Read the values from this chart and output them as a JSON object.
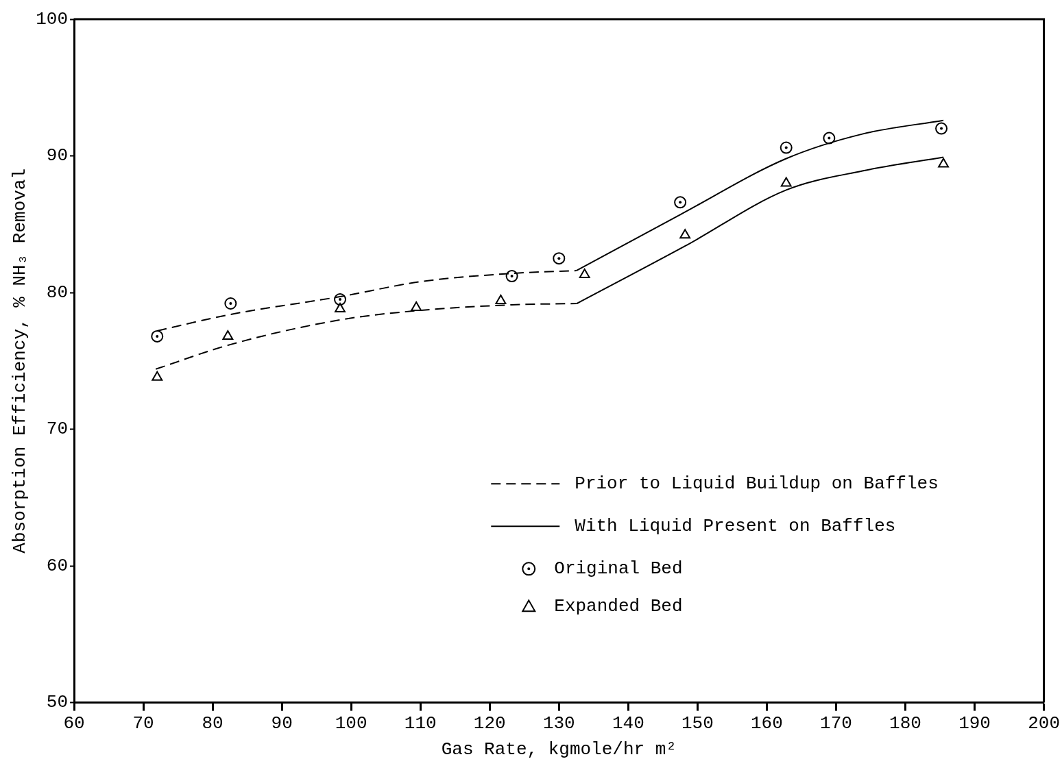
{
  "chart_data": {
    "type": "line",
    "xlabel": "Gas Rate, kgmole/hr m²",
    "ylabel": "Absorption Efficiency, % NH₃ Removal",
    "xlim": [
      60,
      200
    ],
    "xticks": [
      60,
      70,
      80,
      90,
      100,
      110,
      120,
      130,
      140,
      150,
      160,
      170,
      180,
      190,
      200
    ],
    "ylim": [
      50,
      100
    ],
    "yticks": [
      50,
      60,
      70,
      80,
      90,
      100
    ],
    "grid": false,
    "legend": "bottom right",
    "series": [
      {
        "name": "Prior to Liquid Buildup on Baffles",
        "type": "line",
        "color": "#000000",
        "line_style": "dashed",
        "marker": "none",
        "x": [
          71.8,
          82.6,
          98.4,
          110.1,
          123.2,
          132.6
        ],
        "values": [
          74.4,
          76.2,
          78.0,
          78.7,
          79.1,
          79.2
        ]
      },
      {
        "type": "line",
        "color": "#000000",
        "line_style": "dashed",
        "marker": "none",
        "x": [
          72,
          82.6,
          98.4,
          110.1,
          123.2,
          132.5
        ],
        "values": [
          77.2,
          78.4,
          79.7,
          80.8,
          81.4,
          81.6
        ]
      },
      {
        "name": "With Liquid Present on Baffles",
        "type": "line",
        "color": "#000000",
        "line_style": "solid",
        "marker": "none",
        "x": [
          132.5,
          147.5,
          162.8,
          173.8,
          185.5
        ],
        "values": [
          81.6,
          85.7,
          89.8,
          91.6,
          92.6
        ]
      },
      {
        "type": "line",
        "color": "#000000",
        "line_style": "solid",
        "marker": "none",
        "x": [
          132.6,
          148.2,
          162.8,
          173.8,
          185.5
        ],
        "values": [
          79.2,
          83.4,
          87.5,
          88.9,
          89.9
        ]
      },
      {
        "name": "Original Bed",
        "type": "scatter",
        "color": "#000000",
        "marker": "circle",
        "x": [
          72,
          82.6,
          98.4,
          123.2,
          130,
          147.5,
          162.8,
          169,
          185.2
        ],
        "values": [
          76.8,
          79.2,
          79.5,
          81.2,
          82.5,
          86.6,
          90.6,
          91.3,
          92.0
        ]
      },
      {
        "name": "Expanded Bed",
        "type": "scatter",
        "color": "#000000",
        "marker": "triangle",
        "x": [
          72,
          82.2,
          98.4,
          109.4,
          121.6,
          133.7,
          148.2,
          162.8,
          185.5
        ],
        "values": [
          73.8,
          76.8,
          78.8,
          78.9,
          79.4,
          81.3,
          84.2,
          88.0,
          89.4
        ]
      }
    ]
  }
}
